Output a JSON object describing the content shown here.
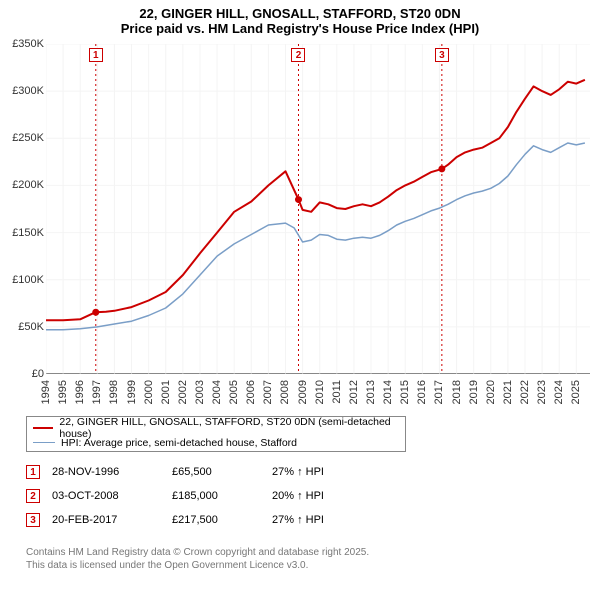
{
  "title_line1": "22, GINGER HILL, GNOSALL, STAFFORD, ST20 0DN",
  "title_line2": "Price paid vs. HM Land Registry's House Price Index (HPI)",
  "chart": {
    "type": "line",
    "background_color": "#ffffff",
    "grid_color": "#f4f4f4",
    "axis_color": "#888888",
    "x_range": [
      1994,
      2025.8
    ],
    "y_range": [
      0,
      350000
    ],
    "y_ticks": [
      0,
      50000,
      100000,
      150000,
      200000,
      250000,
      300000,
      350000
    ],
    "y_tick_labels": [
      "£0",
      "£50K",
      "£100K",
      "£150K",
      "£200K",
      "£250K",
      "£300K",
      "£350K"
    ],
    "x_ticks": [
      1994,
      1995,
      1996,
      1997,
      1998,
      1999,
      2000,
      2001,
      2002,
      2003,
      2004,
      2005,
      2006,
      2007,
      2008,
      2009,
      2010,
      2011,
      2012,
      2013,
      2014,
      2015,
      2016,
      2017,
      2018,
      2019,
      2020,
      2021,
      2022,
      2023,
      2024,
      2025
    ],
    "label_fontsize": 11,
    "series": [
      {
        "id": "price_paid",
        "label": "22, GINGER HILL, GNOSALL, STAFFORD, ST20 0DN (semi-detached house)",
        "color": "#cc0000",
        "width": 2,
        "data": [
          [
            1994.0,
            57000
          ],
          [
            1995.0,
            57000
          ],
          [
            1996.0,
            58000
          ],
          [
            1996.9,
            65500
          ],
          [
            1997.5,
            66000
          ],
          [
            1998.0,
            67000
          ],
          [
            1999.0,
            71000
          ],
          [
            2000.0,
            78000
          ],
          [
            2001.0,
            87000
          ],
          [
            2002.0,
            105000
          ],
          [
            2003.0,
            128000
          ],
          [
            2004.0,
            150000
          ],
          [
            2005.0,
            172000
          ],
          [
            2006.0,
            183000
          ],
          [
            2007.0,
            200000
          ],
          [
            2008.0,
            215000
          ],
          [
            2008.76,
            185000
          ],
          [
            2009.0,
            174000
          ],
          [
            2009.5,
            172000
          ],
          [
            2010.0,
            182000
          ],
          [
            2010.5,
            180000
          ],
          [
            2011.0,
            176000
          ],
          [
            2011.5,
            175000
          ],
          [
            2012.0,
            178000
          ],
          [
            2012.5,
            180000
          ],
          [
            2013.0,
            178000
          ],
          [
            2013.5,
            182000
          ],
          [
            2014.0,
            188000
          ],
          [
            2014.5,
            195000
          ],
          [
            2015.0,
            200000
          ],
          [
            2015.5,
            204000
          ],
          [
            2016.0,
            209000
          ],
          [
            2016.5,
            214000
          ],
          [
            2017.14,
            217500
          ],
          [
            2017.5,
            222000
          ],
          [
            2018.0,
            230000
          ],
          [
            2018.5,
            235000
          ],
          [
            2019.0,
            238000
          ],
          [
            2019.5,
            240000
          ],
          [
            2020.0,
            245000
          ],
          [
            2020.5,
            250000
          ],
          [
            2021.0,
            262000
          ],
          [
            2021.5,
            278000
          ],
          [
            2022.0,
            292000
          ],
          [
            2022.5,
            305000
          ],
          [
            2023.0,
            300000
          ],
          [
            2023.5,
            296000
          ],
          [
            2024.0,
            302000
          ],
          [
            2024.5,
            310000
          ],
          [
            2025.0,
            308000
          ],
          [
            2025.5,
            312000
          ]
        ]
      },
      {
        "id": "hpi",
        "label": "HPI: Average price, semi-detached house, Stafford",
        "color": "#7a9ec7",
        "width": 1.5,
        "data": [
          [
            1994.0,
            47000
          ],
          [
            1995.0,
            47000
          ],
          [
            1996.0,
            48000
          ],
          [
            1997.0,
            50000
          ],
          [
            1998.0,
            53000
          ],
          [
            1999.0,
            56000
          ],
          [
            2000.0,
            62000
          ],
          [
            2001.0,
            70000
          ],
          [
            2002.0,
            85000
          ],
          [
            2003.0,
            105000
          ],
          [
            2004.0,
            125000
          ],
          [
            2005.0,
            138000
          ],
          [
            2006.0,
            148000
          ],
          [
            2007.0,
            158000
          ],
          [
            2008.0,
            160000
          ],
          [
            2008.5,
            155000
          ],
          [
            2009.0,
            140000
          ],
          [
            2009.5,
            142000
          ],
          [
            2010.0,
            148000
          ],
          [
            2010.5,
            147000
          ],
          [
            2011.0,
            143000
          ],
          [
            2011.5,
            142000
          ],
          [
            2012.0,
            144000
          ],
          [
            2012.5,
            145000
          ],
          [
            2013.0,
            144000
          ],
          [
            2013.5,
            147000
          ],
          [
            2014.0,
            152000
          ],
          [
            2014.5,
            158000
          ],
          [
            2015.0,
            162000
          ],
          [
            2015.5,
            165000
          ],
          [
            2016.0,
            169000
          ],
          [
            2016.5,
            173000
          ],
          [
            2017.0,
            176000
          ],
          [
            2017.5,
            180000
          ],
          [
            2018.0,
            185000
          ],
          [
            2018.5,
            189000
          ],
          [
            2019.0,
            192000
          ],
          [
            2019.5,
            194000
          ],
          [
            2020.0,
            197000
          ],
          [
            2020.5,
            202000
          ],
          [
            2021.0,
            210000
          ],
          [
            2021.5,
            222000
          ],
          [
            2022.0,
            233000
          ],
          [
            2022.5,
            242000
          ],
          [
            2023.0,
            238000
          ],
          [
            2023.5,
            235000
          ],
          [
            2024.0,
            240000
          ],
          [
            2024.5,
            245000
          ],
          [
            2025.0,
            243000
          ],
          [
            2025.5,
            245000
          ]
        ]
      }
    ],
    "sale_markers": [
      {
        "n": "1",
        "x": 1996.91,
        "y": 65500,
        "color": "#cc0000"
      },
      {
        "n": "2",
        "x": 2008.76,
        "y": 185000,
        "color": "#cc0000"
      },
      {
        "n": "3",
        "x": 2017.14,
        "y": 217500,
        "color": "#cc0000"
      }
    ],
    "vline_color": "#cc0000",
    "vline_dash": "2,3"
  },
  "legend": {
    "rows": [
      {
        "color": "#cc0000",
        "width": 2,
        "label": "22, GINGER HILL, GNOSALL, STAFFORD, ST20 0DN (semi-detached house)"
      },
      {
        "color": "#7a9ec7",
        "width": 1.5,
        "label": "HPI: Average price, semi-detached house, Stafford"
      }
    ]
  },
  "sales_table": {
    "rows": [
      {
        "n": "1",
        "color": "#cc0000",
        "date": "28-NOV-1996",
        "price": "£65,500",
        "delta": "27% ↑ HPI"
      },
      {
        "n": "2",
        "color": "#cc0000",
        "date": "03-OCT-2008",
        "price": "£185,000",
        "delta": "20% ↑ HPI"
      },
      {
        "n": "3",
        "color": "#cc0000",
        "date": "20-FEB-2017",
        "price": "£217,500",
        "delta": "27% ↑ HPI"
      }
    ]
  },
  "footer_line1": "Contains HM Land Registry data © Crown copyright and database right 2025.",
  "footer_line2": "This data is licensed under the Open Government Licence v3.0."
}
